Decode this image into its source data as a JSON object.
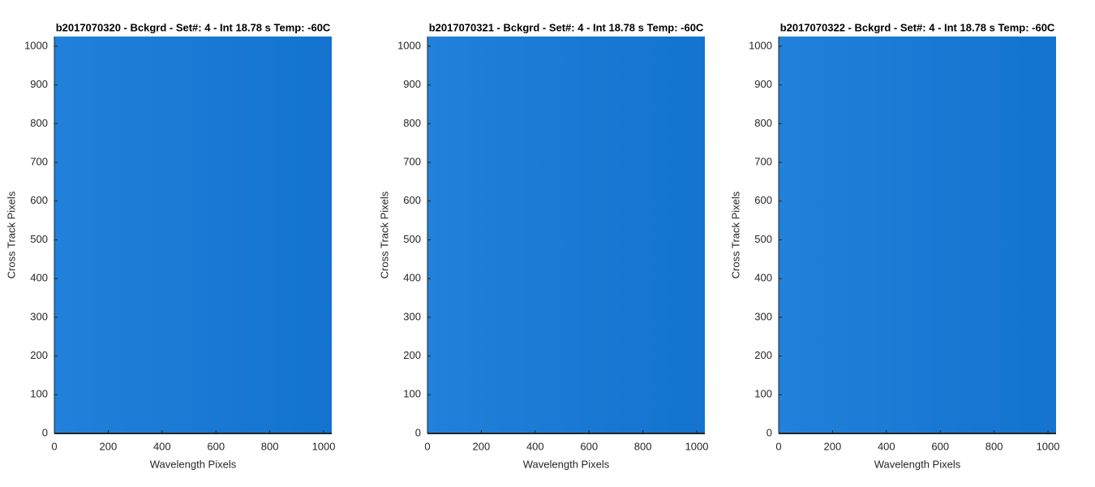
{
  "chart_data": [
    {
      "type": "heatmap",
      "title": "b2017070320 - Bckgrd - Set#: 4 - Int 18.78 s Temp: -60C",
      "x_label": "Wavelength Pixels",
      "y_label": "Cross Track Pixels",
      "xlim": [
        0,
        1030
      ],
      "ylim": [
        0,
        1025
      ],
      "xticks": [
        0,
        200,
        400,
        600,
        800,
        1000
      ],
      "yticks": [
        0,
        100,
        200,
        300,
        400,
        500,
        600,
        700,
        800,
        900,
        1000
      ],
      "color": "#1479d8"
    },
    {
      "type": "heatmap",
      "title": "b2017070321 - Bckgrd - Set#: 4 - Int 18.78 s Temp: -60C",
      "x_label": "Wavelength Pixels",
      "y_label": "Cross Track Pixels",
      "xlim": [
        0,
        1030
      ],
      "ylim": [
        0,
        1025
      ],
      "xticks": [
        0,
        200,
        400,
        600,
        800,
        1000
      ],
      "yticks": [
        0,
        100,
        200,
        300,
        400,
        500,
        600,
        700,
        800,
        900,
        1000
      ],
      "color": "#1479d8"
    },
    {
      "type": "heatmap",
      "title": "b2017070322 - Bckgrd - Set#: 4 - Int 18.78 s Temp: -60C",
      "x_label": "Wavelength Pixels",
      "y_label": "Cross Track Pixels",
      "xlim": [
        0,
        1030
      ],
      "ylim": [
        0,
        1025
      ],
      "xticks": [
        0,
        200,
        400,
        600,
        800,
        1000
      ],
      "yticks": [
        0,
        100,
        200,
        300,
        400,
        500,
        600,
        700,
        800,
        900,
        1000
      ],
      "color": "#1479d8"
    }
  ]
}
